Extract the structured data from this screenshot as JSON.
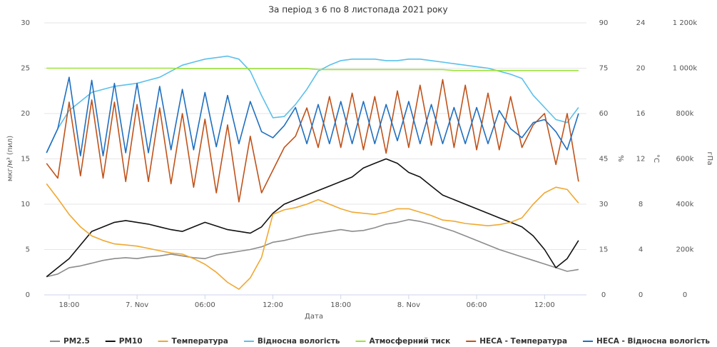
{
  "chart_data": {
    "type": "line",
    "title": "За період з 6 по 8 листопада 2021 року",
    "x_label": "Дата",
    "y_label": "мкг/м³ (пил)",
    "y2_label": "%",
    "y3_label": "°С",
    "y4_label": "гПа",
    "x": [
      16,
      17,
      18,
      19,
      20,
      21,
      22,
      23,
      24,
      25,
      26,
      27,
      28,
      29,
      30,
      31,
      32,
      33,
      34,
      35,
      36,
      37,
      38,
      39,
      40,
      41,
      42,
      43,
      44,
      45,
      46,
      47,
      48,
      49,
      50,
      51,
      52,
      53,
      54,
      55,
      56,
      57,
      58,
      59,
      60,
      61,
      62,
      63
    ],
    "xlim": [
      15.8,
      63.7
    ],
    "xticks": [
      {
        "value": 18,
        "label": "18:00"
      },
      {
        "value": 24,
        "label": "7. Nov"
      },
      {
        "value": 30,
        "label": "06:00"
      },
      {
        "value": 36,
        "label": "12:00"
      },
      {
        "value": 42,
        "label": "18:00"
      },
      {
        "value": 48,
        "label": "8. Nov"
      },
      {
        "value": 54,
        "label": "06:00"
      },
      {
        "value": 60,
        "label": "12:00"
      }
    ],
    "ylim": [
      0,
      30
    ],
    "yticks": [
      0,
      5,
      10,
      15,
      20,
      25,
      30
    ],
    "y2lim": [
      0,
      90
    ],
    "y2ticks": [
      0,
      15,
      30,
      45,
      60,
      75,
      90
    ],
    "y3lim": [
      0,
      24
    ],
    "y3ticks": [
      0,
      4,
      8,
      12,
      16,
      20,
      24
    ],
    "y4lim": [
      0,
      1200000
    ],
    "y4ticks": [
      0,
      {
        "value": 200000,
        "label": "200k"
      },
      {
        "value": 400000,
        "label": "400k"
      },
      {
        "value": 600000,
        "label": "600k"
      },
      {
        "value": 800000,
        "label": "800k"
      },
      {
        "value": 1000000,
        "label": "1 000k"
      },
      {
        "value": 1200000,
        "label": "1 200k"
      }
    ],
    "grid": true,
    "legend": "bottom",
    "series": [
      {
        "name": "PM2.5",
        "color": "#8c8c8c",
        "axis": "y",
        "values": [
          2,
          2.3,
          3,
          3.2,
          3.5,
          3.8,
          4,
          4.1,
          4,
          4.2,
          4.3,
          4.5,
          4.3,
          4.1,
          4,
          4.4,
          4.6,
          4.8,
          5,
          5.3,
          5.8,
          6,
          6.3,
          6.6,
          6.8,
          7,
          7.2,
          7,
          7.1,
          7.4,
          7.8,
          8,
          8.3,
          8.1,
          7.8,
          7.4,
          7,
          6.5,
          6,
          5.5,
          5,
          4.6,
          4.2,
          3.8,
          3.4,
          3,
          2.6,
          2.8
        ]
      },
      {
        "name": "PM10",
        "color": "#111111",
        "axis": "y",
        "values": [
          2,
          3,
          4,
          5.5,
          7,
          7.5,
          8,
          8.2,
          8,
          7.8,
          7.5,
          7.2,
          7,
          7.5,
          8,
          7.6,
          7.2,
          7,
          6.8,
          7.5,
          9,
          10,
          10.5,
          11,
          11.5,
          12,
          12.5,
          13,
          14,
          14.5,
          15,
          14.5,
          13.5,
          13,
          12,
          11,
          10.5,
          10,
          9.5,
          9,
          8.5,
          8,
          7.5,
          6.5,
          5,
          3,
          4,
          6
        ]
      },
      {
        "name": "Температура",
        "color": "#f0a830",
        "axis": "y3",
        "values": [
          9.8,
          8.5,
          7.1,
          6,
          5.2,
          4.8,
          4.5,
          4.4,
          4.3,
          4.1,
          3.9,
          3.7,
          3.6,
          3.2,
          2.7,
          2,
          1.1,
          0.5,
          1.5,
          3.3,
          7.1,
          7.5,
          7.7,
          8,
          8.4,
          8,
          7.6,
          7.3,
          7.2,
          7.1,
          7.3,
          7.6,
          7.6,
          7.3,
          7,
          6.6,
          6.5,
          6.3,
          6.2,
          6.1,
          6.2,
          6.4,
          6.8,
          8,
          9,
          9.5,
          9.3,
          8.1
        ]
      },
      {
        "name": "Відносна вологість",
        "color": "#5bc0eb",
        "axis": "y2",
        "values": [
          47,
          55,
          61,
          64,
          67,
          68,
          69,
          69.5,
          70,
          71,
          72,
          74,
          76,
          77,
          78,
          78.5,
          79,
          78,
          74,
          66,
          58.6,
          59,
          63,
          68,
          74,
          76,
          77.5,
          78,
          78,
          78,
          77.5,
          77.5,
          78,
          78,
          77.5,
          77,
          76.5,
          76,
          75.5,
          75,
          74,
          73,
          71.6,
          66,
          62,
          58,
          57,
          62
        ]
      },
      {
        "name": "Атмосферний тиск",
        "color": "#9be33a",
        "axis": "y4",
        "values": [
          1000000,
          1000000,
          1000000,
          1000000,
          1000000,
          1000000,
          1000000,
          1000000,
          1000000,
          1000000,
          1000000,
          1000000,
          998000,
          998000,
          998000,
          998000,
          998000,
          998000,
          998000,
          998000,
          998000,
          998000,
          998000,
          998000,
          994000,
          994000,
          994000,
          994000,
          994000,
          994000,
          994000,
          994000,
          994000,
          994000,
          994000,
          994000,
          990000,
          990000,
          990000,
          990000,
          990000,
          990000,
          990000,
          990000,
          990000,
          990000,
          990000,
          990000
        ]
      },
      {
        "name": "HECA - Температура",
        "color": "#c0521a",
        "axis": "y3",
        "values": [
          11.6,
          10.3,
          17,
          10.5,
          17.2,
          10.3,
          17,
          10,
          16.8,
          10,
          16.5,
          9.8,
          16,
          9.5,
          15.5,
          9,
          15,
          8.2,
          14,
          9,
          11,
          13,
          14,
          16.5,
          13,
          17.5,
          13,
          17.8,
          12.8,
          17.5,
          12.5,
          18,
          13,
          18.5,
          13.2,
          19,
          13,
          18.5,
          12.8,
          17.8,
          12.8,
          17.5,
          13,
          15,
          16,
          11.5,
          16,
          10
        ]
      },
      {
        "name": "HECA - Відносна вологість",
        "color": "#1f6fc0",
        "axis": "y2",
        "values": [
          47,
          55,
          72,
          46,
          71,
          46,
          70,
          47,
          70,
          47,
          69,
          48,
          68,
          48,
          67,
          49,
          66,
          50,
          64,
          54,
          52,
          56,
          62,
          50,
          63,
          50,
          64,
          50,
          64,
          50,
          63,
          51,
          64,
          50,
          63,
          50,
          62,
          50,
          62,
          50,
          61,
          55,
          52,
          57,
          58,
          54,
          48,
          60
        ]
      }
    ]
  }
}
